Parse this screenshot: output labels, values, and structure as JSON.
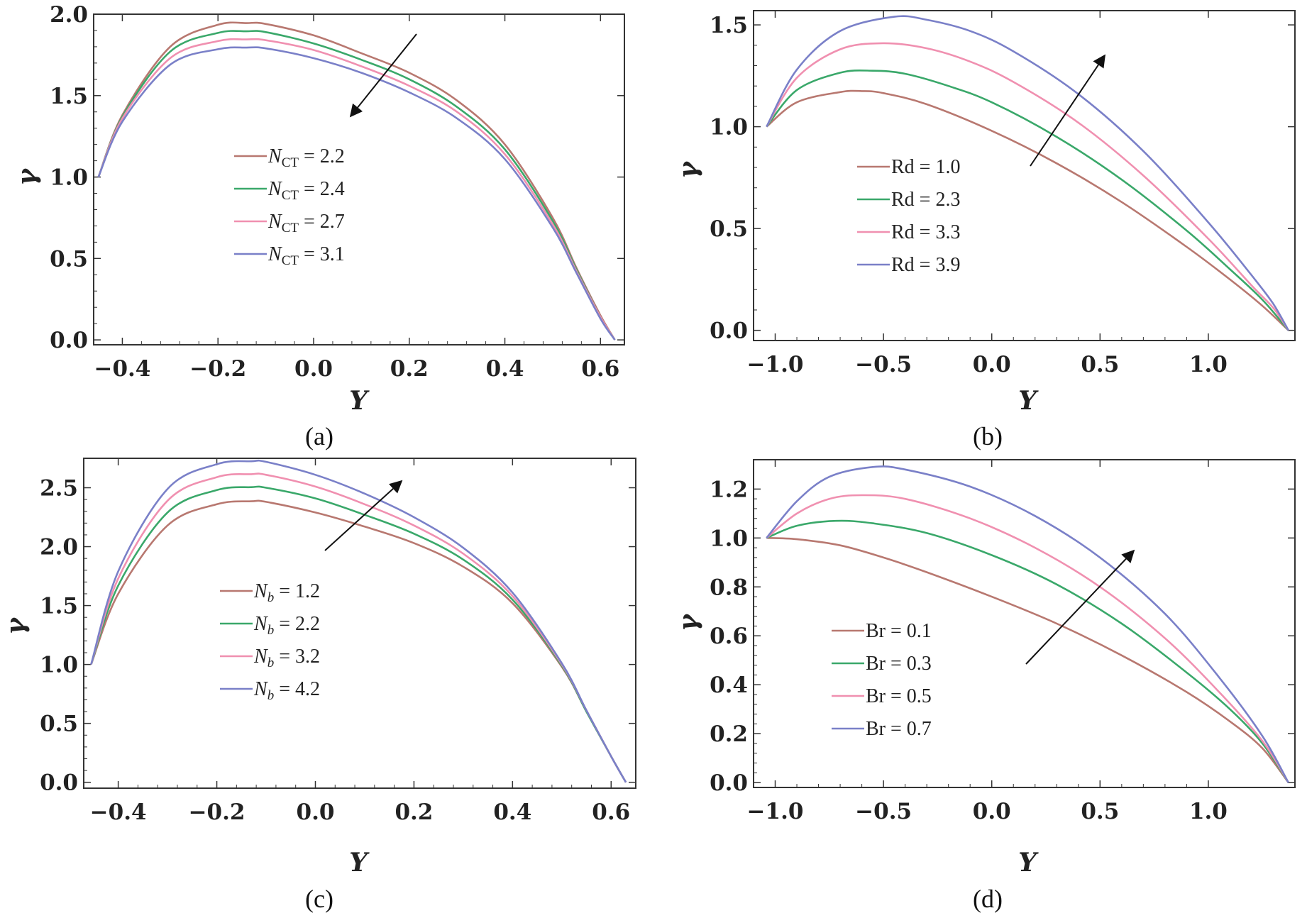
{
  "chart_data": [
    {
      "type": "line",
      "caption": "(a)",
      "xlabel": "Y",
      "ylabel": "γ",
      "xlim": [
        -0.46,
        0.65
      ],
      "ylim": [
        -0.03,
        2.0
      ],
      "xticks": [
        -0.4,
        -0.2,
        0.0,
        0.2,
        0.4,
        0.6
      ],
      "yticks": [
        0.0,
        0.5,
        1.0,
        1.5,
        2.0
      ],
      "xtick_labels": [
        "−0.4",
        "−0.2",
        "0.0",
        "0.2",
        "0.4",
        "0.6"
      ],
      "ytick_labels": [
        "0.0",
        "0.5",
        "1.0",
        "1.5",
        "2.0"
      ],
      "legend_position": "center-left",
      "arrow": "downward to the left (increasing N_CT lowers the profile)",
      "series": [
        {
          "name": "N_CT = 2.2",
          "symbol": "N",
          "subscript": "CT",
          "value_text": " =  2.2",
          "color": "#b87870",
          "x": [
            -0.45,
            -0.4,
            -0.3,
            -0.2,
            -0.14,
            -0.1,
            0.0,
            0.1,
            0.2,
            0.3,
            0.4,
            0.5,
            0.55,
            0.6,
            0.63
          ],
          "y": [
            1.0,
            1.38,
            1.8,
            1.935,
            1.945,
            1.94,
            1.87,
            1.76,
            1.64,
            1.47,
            1.2,
            0.75,
            0.44,
            0.15,
            0.0
          ]
        },
        {
          "name": "N_CT = 2.4",
          "symbol": "N",
          "subscript": "CT",
          "value_text": " =  2.4",
          "color": "#3aa86a",
          "x": [
            -0.45,
            -0.4,
            -0.3,
            -0.2,
            -0.14,
            -0.1,
            0.0,
            0.1,
            0.2,
            0.3,
            0.4,
            0.5,
            0.55,
            0.6,
            0.63
          ],
          "y": [
            1.0,
            1.37,
            1.77,
            1.885,
            1.895,
            1.89,
            1.82,
            1.72,
            1.6,
            1.43,
            1.17,
            0.73,
            0.43,
            0.14,
            0.0
          ]
        },
        {
          "name": "N_CT = 2.7",
          "symbol": "N",
          "subscript": "CT",
          "value_text": " =  2.7",
          "color": "#f090b0",
          "x": [
            -0.45,
            -0.4,
            -0.3,
            -0.2,
            -0.14,
            -0.1,
            0.0,
            0.1,
            0.2,
            0.3,
            0.4,
            0.5,
            0.55,
            0.6,
            0.63
          ],
          "y": [
            1.0,
            1.36,
            1.73,
            1.835,
            1.845,
            1.84,
            1.78,
            1.68,
            1.56,
            1.4,
            1.14,
            0.71,
            0.42,
            0.14,
            0.0
          ]
        },
        {
          "name": "N_CT = 3.1",
          "symbol": "N",
          "subscript": "CT",
          "value_text": " =  3.1",
          "color": "#7a80c8",
          "x": [
            -0.45,
            -0.4,
            -0.3,
            -0.2,
            -0.14,
            -0.1,
            0.0,
            0.1,
            0.2,
            0.3,
            0.4,
            0.5,
            0.55,
            0.6,
            0.63
          ],
          "y": [
            1.0,
            1.34,
            1.69,
            1.785,
            1.795,
            1.79,
            1.73,
            1.64,
            1.52,
            1.36,
            1.11,
            0.69,
            0.41,
            0.13,
            0.0
          ]
        }
      ]
    },
    {
      "type": "line",
      "caption": "(b)",
      "xlabel": "Y",
      "ylabel": "γ",
      "xlim": [
        -1.1,
        1.4
      ],
      "ylim": [
        -0.05,
        1.57
      ],
      "xticks": [
        -1.0,
        -0.5,
        0.0,
        0.5,
        1.0
      ],
      "yticks": [
        0.0,
        0.5,
        1.0,
        1.5
      ],
      "xtick_labels": [
        "−1.0",
        "−0.5",
        "0.0",
        "0.5",
        "1.0"
      ],
      "ytick_labels": [
        "0.0",
        "0.5",
        "1.0",
        "1.5"
      ],
      "legend_position": "center-left",
      "arrow": "upward to the right (increasing Rd raises the profile)",
      "series": [
        {
          "name": "Rd = 1.0",
          "label_text": "Rd = 1.0",
          "color": "#b87870",
          "x": [
            -1.04,
            -0.9,
            -0.7,
            -0.6,
            -0.5,
            -0.3,
            0.0,
            0.3,
            0.6,
            0.9,
            1.1,
            1.25,
            1.37
          ],
          "y": [
            1.0,
            1.12,
            1.17,
            1.175,
            1.165,
            1.11,
            0.98,
            0.82,
            0.63,
            0.41,
            0.25,
            0.12,
            0.0
          ]
        },
        {
          "name": "Rd = 2.3",
          "label_text": "Rd = 2.3",
          "color": "#3aa86a",
          "x": [
            -1.04,
            -0.9,
            -0.7,
            -0.55,
            -0.4,
            -0.2,
            0.0,
            0.3,
            0.6,
            0.9,
            1.1,
            1.25,
            1.37
          ],
          "y": [
            1.0,
            1.18,
            1.265,
            1.275,
            1.26,
            1.2,
            1.12,
            0.95,
            0.74,
            0.49,
            0.3,
            0.15,
            0.0
          ]
        },
        {
          "name": "Rd = 3.3",
          "label_text": "Rd = 3.3",
          "color": "#f090b0",
          "x": [
            -1.04,
            -0.9,
            -0.7,
            -0.5,
            -0.3,
            -0.1,
            0.1,
            0.4,
            0.7,
            1.0,
            1.2,
            1.3,
            1.37
          ],
          "y": [
            1.0,
            1.24,
            1.38,
            1.41,
            1.385,
            1.32,
            1.22,
            1.02,
            0.76,
            0.45,
            0.22,
            0.11,
            0.0
          ]
        },
        {
          "name": "Rd = 3.9",
          "label_text": "Rd = 3.9",
          "color": "#7a80c8",
          "x": [
            -1.04,
            -0.9,
            -0.7,
            -0.45,
            -0.3,
            -0.1,
            0.1,
            0.4,
            0.7,
            1.0,
            1.2,
            1.3,
            1.37
          ],
          "y": [
            1.0,
            1.28,
            1.47,
            1.54,
            1.525,
            1.47,
            1.37,
            1.16,
            0.88,
            0.53,
            0.27,
            0.13,
            0.0
          ]
        }
      ]
    },
    {
      "type": "line",
      "caption": "(c)",
      "xlabel": "Y",
      "ylabel": "γ",
      "xlim": [
        -0.47,
        0.65
      ],
      "ylim": [
        -0.05,
        2.75
      ],
      "xticks": [
        -0.4,
        -0.2,
        0.0,
        0.2,
        0.4,
        0.6
      ],
      "yticks": [
        0.0,
        0.5,
        1.0,
        1.5,
        2.0,
        2.5
      ],
      "xtick_labels": [
        "−0.4",
        "−0.2",
        "0.0",
        "0.2",
        "0.4",
        "0.6"
      ],
      "ytick_labels": [
        "0.0",
        "0.5",
        "1.0",
        "1.5",
        "2.0",
        "2.5"
      ],
      "legend_position": "center-left",
      "arrow": "upward to the right (increasing N_b raises the profile)",
      "series": [
        {
          "name": "N_b = 1.2",
          "symbol": "N",
          "subscript": "b",
          "value_text": " = 1.2",
          "color": "#b87870",
          "x": [
            -0.455,
            -0.4,
            -0.3,
            -0.2,
            -0.13,
            -0.1,
            0.0,
            0.1,
            0.2,
            0.3,
            0.4,
            0.5,
            0.55,
            0.6,
            0.63
          ],
          "y": [
            1.0,
            1.6,
            2.18,
            2.36,
            2.385,
            2.38,
            2.29,
            2.17,
            2.03,
            1.83,
            1.52,
            0.98,
            0.6,
            0.22,
            0.0
          ]
        },
        {
          "name": "N_b = 2.2",
          "symbol": "N",
          "subscript": "b",
          "value_text": " = 2.2",
          "color": "#3aa86a",
          "x": [
            -0.455,
            -0.4,
            -0.3,
            -0.2,
            -0.13,
            -0.1,
            0.0,
            0.1,
            0.2,
            0.3,
            0.4,
            0.5,
            0.55,
            0.6,
            0.63
          ],
          "y": [
            1.0,
            1.67,
            2.29,
            2.48,
            2.505,
            2.5,
            2.41,
            2.27,
            2.11,
            1.89,
            1.55,
            0.99,
            0.6,
            0.22,
            0.0
          ]
        },
        {
          "name": "N_b = 3.2",
          "symbol": "N",
          "subscript": "b",
          "value_text": " = 3.2",
          "color": "#f090b0",
          "x": [
            -0.455,
            -0.4,
            -0.3,
            -0.2,
            -0.13,
            -0.1,
            0.0,
            0.1,
            0.2,
            0.3,
            0.4,
            0.5,
            0.55,
            0.6,
            0.63
          ],
          "y": [
            1.0,
            1.73,
            2.39,
            2.59,
            2.615,
            2.61,
            2.51,
            2.36,
            2.18,
            1.94,
            1.58,
            1.0,
            0.61,
            0.22,
            0.0
          ]
        },
        {
          "name": "N_b = 4.2",
          "symbol": "N",
          "subscript": "b",
          "value_text": " = 4.2",
          "color": "#7a80c8",
          "x": [
            -0.455,
            -0.4,
            -0.3,
            -0.2,
            -0.13,
            -0.1,
            0.0,
            0.1,
            0.2,
            0.3,
            0.4,
            0.5,
            0.55,
            0.6,
            0.63
          ],
          "y": [
            1.0,
            1.79,
            2.49,
            2.7,
            2.725,
            2.72,
            2.61,
            2.45,
            2.25,
            1.99,
            1.61,
            1.01,
            0.61,
            0.22,
            0.0
          ]
        }
      ]
    },
    {
      "type": "line",
      "caption": "(d)",
      "xlabel": "Y",
      "ylabel": "γ",
      "xlim": [
        -1.1,
        1.4
      ],
      "ylim": [
        -0.02,
        1.32
      ],
      "xticks": [
        -1.0,
        -0.5,
        0.0,
        0.5,
        1.0
      ],
      "yticks": [
        0.0,
        0.2,
        0.4,
        0.6,
        0.8,
        1.0,
        1.2
      ],
      "xtick_labels": [
        "−1.0",
        "−0.5",
        "0.0",
        "0.5",
        "1.0"
      ],
      "ytick_labels": [
        "0.0",
        "0.2",
        "0.4",
        "0.6",
        "0.8",
        "1.0",
        "1.2"
      ],
      "legend_position": "lower-left",
      "arrow": "upward to the right (increasing Br raises the profile)",
      "series": [
        {
          "name": "Br = 0.1",
          "label_text": "Br = 0.1",
          "color": "#b87870",
          "x": [
            -1.04,
            -0.9,
            -0.7,
            -0.5,
            -0.3,
            0.0,
            0.3,
            0.6,
            0.9,
            1.1,
            1.25,
            1.37
          ],
          "y": [
            1.0,
            0.995,
            0.97,
            0.92,
            0.86,
            0.76,
            0.65,
            0.52,
            0.37,
            0.25,
            0.14,
            0.0
          ]
        },
        {
          "name": "Br = 0.3",
          "label_text": "Br = 0.3",
          "color": "#3aa86a",
          "x": [
            -1.04,
            -0.9,
            -0.72,
            -0.55,
            -0.3,
            0.0,
            0.3,
            0.6,
            0.9,
            1.1,
            1.25,
            1.37
          ],
          "y": [
            1.0,
            1.05,
            1.07,
            1.06,
            1.02,
            0.93,
            0.81,
            0.65,
            0.45,
            0.3,
            0.16,
            0.0
          ]
        },
        {
          "name": "Br = 0.5",
          "label_text": "Br = 0.5",
          "color": "#f090b0",
          "x": [
            -1.04,
            -0.9,
            -0.75,
            -0.6,
            -0.4,
            -0.1,
            0.2,
            0.5,
            0.8,
            1.05,
            1.25,
            1.37
          ],
          "y": [
            1.0,
            1.1,
            1.16,
            1.175,
            1.16,
            1.08,
            0.96,
            0.8,
            0.59,
            0.37,
            0.17,
            0.0
          ]
        },
        {
          "name": "Br = 0.7",
          "label_text": "Br = 0.7",
          "color": "#7a80c8",
          "x": [
            -1.04,
            -0.9,
            -0.75,
            -0.55,
            -0.4,
            -0.1,
            0.2,
            0.5,
            0.8,
            1.05,
            1.25,
            1.37
          ],
          "y": [
            1.0,
            1.15,
            1.25,
            1.29,
            1.28,
            1.21,
            1.09,
            0.92,
            0.69,
            0.43,
            0.19,
            0.0
          ]
        }
      ]
    }
  ]
}
